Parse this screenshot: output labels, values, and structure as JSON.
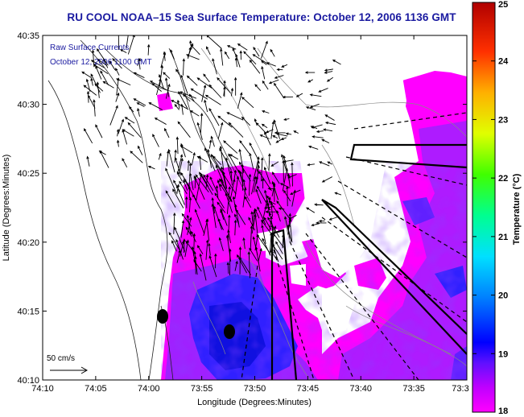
{
  "title": "RU COOL  NOAA–15  Sea Surface Temperature:  October 12, 2006 1136 GMT",
  "overlay": {
    "line1": "Raw Surface Currents",
    "line2": "October 12, 2006 1100 GMT"
  },
  "scale_label": "50 cm/s",
  "axes": {
    "xlabel": "Longitude (Degrees:Minutes)",
    "ylabel": "Latitude (Degrees:Minutes)",
    "x_ticks": [
      "74:10",
      "74:05",
      "74:00",
      "73:55",
      "73:50",
      "73:45",
      "73:40",
      "73:35",
      "73:3"
    ],
    "y_ticks": [
      "40:35",
      "40:30",
      "40:25",
      "40:20",
      "40:15",
      "40:10"
    ]
  },
  "colorbar": {
    "label": "Temperature (°C)",
    "min": 18,
    "max": 25,
    "ticks": [
      "25",
      "24",
      "23",
      "22",
      "21",
      "20",
      "19",
      "18"
    ]
  },
  "colors": {
    "title": "#1a1aa0",
    "land": "#ffffff",
    "sst_warm": "#ff00ff",
    "sst_mid": "#a020ff",
    "sst_cool": "#2030ff",
    "sst_cold": "#1010d0"
  }
}
